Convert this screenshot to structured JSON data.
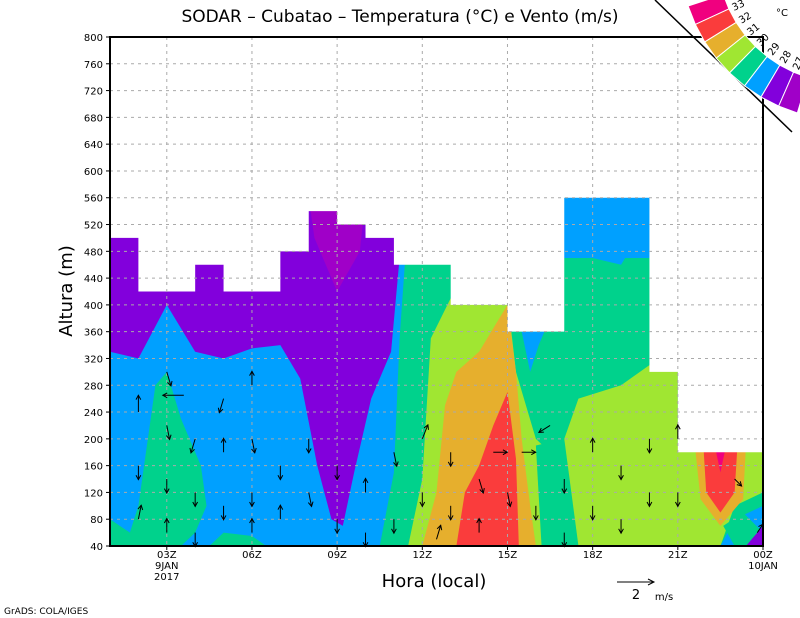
{
  "chart_data": {
    "type": "heatmap",
    "title": "SODAR – Cubatao – Temperatura (°C) e Vento (m/s)",
    "xlabel": "Hora (local)",
    "ylabel": "Altura (m)",
    "xlim": [
      1,
      24
    ],
    "ylim": [
      40,
      800
    ],
    "grid": true,
    "x_ticks": [
      {
        "h": 3,
        "label": "03Z",
        "sub1": "9JAN",
        "sub2": "2017"
      },
      {
        "h": 6,
        "label": "06Z"
      },
      {
        "h": 9,
        "label": "09Z"
      },
      {
        "h": 12,
        "label": "12Z"
      },
      {
        "h": 15,
        "label": "15Z"
      },
      {
        "h": 18,
        "label": "18Z"
      },
      {
        "h": 21,
        "label": "21Z"
      },
      {
        "h": 24,
        "label": "00Z",
        "sub1": "10JAN"
      }
    ],
    "y_ticks": [
      "40",
      "80",
      "120",
      "160",
      "200",
      "240",
      "280",
      "320",
      "360",
      "400",
      "440",
      "480",
      "520",
      "560",
      "600",
      "640",
      "680",
      "720",
      "760",
      "800"
    ],
    "legend": {
      "unit": "°C",
      "placement": "top-right",
      "levels": [
        "33",
        "32",
        "31",
        "30",
        "29",
        "28",
        "27"
      ],
      "colors": [
        "#f0007f",
        "#fa3c3c",
        "#e6af2d",
        "#a0e632",
        "#00d28c",
        "#00a0ff",
        "#8200dc",
        "#a000c8"
      ]
    },
    "data_top": [
      [
        1,
        500
      ],
      [
        2,
        420
      ],
      [
        4,
        460
      ],
      [
        5,
        420
      ],
      [
        7,
        480
      ],
      [
        8,
        540
      ],
      [
        9,
        520
      ],
      [
        10,
        500
      ],
      [
        11,
        460
      ],
      [
        13,
        400
      ],
      [
        15,
        360
      ],
      [
        17,
        560
      ],
      [
        20,
        300
      ],
      [
        21,
        180
      ],
      [
        24,
        180
      ]
    ],
    "regions": [
      {
        "temp_class": "28-29",
        "color": "#00a0ff",
        "points": [
          [
            1,
            40
          ],
          [
            1,
            560
          ],
          [
            24,
            560
          ],
          [
            24,
            40
          ]
        ]
      },
      {
        "temp_class": "27-28",
        "color": "#8200dc",
        "points": [
          [
            1,
            560
          ],
          [
            1,
            330
          ],
          [
            2,
            320
          ],
          [
            3,
            400
          ],
          [
            4,
            330
          ],
          [
            5,
            320
          ],
          [
            6,
            335
          ],
          [
            7,
            340
          ],
          [
            7.7,
            290
          ],
          [
            8.3,
            160
          ],
          [
            8.8,
            80
          ],
          [
            9.2,
            70
          ],
          [
            9.6,
            150
          ],
          [
            10.2,
            260
          ],
          [
            10.9,
            330
          ],
          [
            11.2,
            470
          ],
          [
            11.2,
            560
          ]
        ]
      },
      {
        "temp_class": "<27",
        "color": "#a000c8",
        "points": [
          [
            8,
            560
          ],
          [
            8.2,
            500
          ],
          [
            9,
            420
          ],
          [
            9.8,
            480
          ],
          [
            10,
            560
          ]
        ]
      },
      {
        "temp_class": "29-30",
        "color": "#00d28c",
        "points": [
          [
            1,
            40
          ],
          [
            1,
            80
          ],
          [
            1.7,
            60
          ],
          [
            2,
            100
          ],
          [
            2.6,
            280
          ],
          [
            3,
            300
          ],
          [
            3.5,
            230
          ],
          [
            4.2,
            160
          ],
          [
            4.4,
            100
          ],
          [
            4,
            60
          ],
          [
            3.5,
            40
          ]
        ]
      },
      {
        "temp_class": "29-30",
        "color": "#00d28c",
        "points": [
          [
            4.5,
            40
          ],
          [
            5,
            60
          ],
          [
            6,
            55
          ],
          [
            6.5,
            40
          ]
        ]
      },
      {
        "temp_class": "29-30",
        "color": "#00d28c",
        "points": [
          [
            10.5,
            40
          ],
          [
            11,
            150
          ],
          [
            11.2,
            350
          ],
          [
            11.4,
            470
          ],
          [
            24,
            470
          ],
          [
            24,
            40
          ]
        ]
      },
      {
        "temp_class": "28-29",
        "color": "#00a0ff",
        "points": [
          [
            15.5,
            360
          ],
          [
            15.8,
            300
          ],
          [
            16.1,
            340
          ],
          [
            16.3,
            360
          ]
        ]
      },
      {
        "temp_class": "28-29",
        "color": "#00a0ff",
        "points": [
          [
            17,
            570
          ],
          [
            17,
            520
          ],
          [
            18,
            470
          ],
          [
            19,
            460
          ],
          [
            20,
            530
          ],
          [
            20,
            570
          ]
        ]
      },
      {
        "temp_class": "28-29",
        "color": "#00a0ff",
        "points": [
          [
            22.5,
            40
          ],
          [
            23,
            80
          ],
          [
            24,
            100
          ],
          [
            24,
            40
          ]
        ]
      },
      {
        "temp_class": "30-31",
        "color": "#a0e632",
        "points": [
          [
            11.5,
            40
          ],
          [
            12,
            140
          ],
          [
            12.3,
            350
          ],
          [
            13,
            410
          ],
          [
            15,
            410
          ],
          [
            15.3,
            300
          ],
          [
            16,
            200
          ],
          [
            16.5,
            180
          ],
          [
            17,
            200
          ],
          [
            17.5,
            260
          ],
          [
            19,
            280
          ],
          [
            20,
            310
          ],
          [
            21,
            310
          ],
          [
            21,
            190
          ],
          [
            24,
            190
          ],
          [
            24,
            120
          ],
          [
            23,
            100
          ],
          [
            22.5,
            40
          ]
        ]
      },
      {
        "temp_class": "29-30",
        "color": "#00d28c",
        "points": [
          [
            16.2,
            40
          ],
          [
            16,
            190
          ],
          [
            17,
            200
          ],
          [
            17.5,
            40
          ]
        ]
      },
      {
        "temp_class": "29-30",
        "color": "#00d28c",
        "points": [
          [
            23,
            40
          ],
          [
            22.6,
            70
          ],
          [
            23.3,
            90
          ],
          [
            24,
            60
          ],
          [
            24,
            40
          ]
        ]
      },
      {
        "temp_class": "31-32",
        "color": "#e6af2d",
        "points": [
          [
            12,
            40
          ],
          [
            12.5,
            120
          ],
          [
            12.8,
            250
          ],
          [
            13.2,
            300
          ],
          [
            14,
            330
          ],
          [
            15,
            400
          ],
          [
            15.3,
            300
          ],
          [
            15.5,
            200
          ],
          [
            15.8,
            100
          ],
          [
            16,
            40
          ]
        ]
      },
      {
        "temp_class": "31-32",
        "color": "#e6af2d",
        "points": [
          [
            21.6,
            190
          ],
          [
            21.8,
            110
          ],
          [
            22.5,
            70
          ],
          [
            23.3,
            110
          ],
          [
            23.4,
            190
          ]
        ]
      },
      {
        "temp_class": "32-33",
        "color": "#fa3c3c",
        "points": [
          [
            13.2,
            40
          ],
          [
            13.5,
            120
          ],
          [
            14,
            160
          ],
          [
            14.5,
            220
          ],
          [
            15,
            270
          ],
          [
            15.3,
            170
          ],
          [
            15.4,
            40
          ]
        ]
      },
      {
        "temp_class": "32-33",
        "color": "#fa3c3c",
        "points": [
          [
            21.9,
            190
          ],
          [
            22,
            120
          ],
          [
            22.5,
            90
          ],
          [
            23,
            120
          ],
          [
            23.1,
            190
          ]
        ]
      },
      {
        "temp_class": ">33",
        "color": "#f0007f",
        "points": [
          [
            22.3,
            190
          ],
          [
            22.5,
            150
          ],
          [
            22.7,
            190
          ]
        ]
      },
      {
        "temp_class": "27-28",
        "color": "#8200dc",
        "points": [
          [
            23.4,
            40
          ],
          [
            24,
            40
          ],
          [
            24,
            70
          ]
        ]
      }
    ],
    "wind_vectors": [
      [
        2,
        240,
        0,
        1.2
      ],
      [
        2,
        160,
        0,
        -1
      ],
      [
        2,
        80,
        0.2,
        1
      ],
      [
        3,
        300,
        0.3,
        -1
      ],
      [
        3,
        220,
        0.2,
        -1
      ],
      [
        3,
        140,
        0,
        -1
      ],
      [
        3,
        60,
        0,
        1
      ],
      [
        3.6,
        265,
        -1.5,
        0
      ],
      [
        4,
        200,
        -0.3,
        -1
      ],
      [
        4,
        120,
        0,
        -1
      ],
      [
        4,
        60,
        0,
        -1
      ],
      [
        5,
        260,
        -0.3,
        -1
      ],
      [
        5,
        180,
        0,
        1
      ],
      [
        5,
        100,
        0,
        -1
      ],
      [
        6,
        280,
        0,
        1
      ],
      [
        6,
        200,
        0.2,
        -1
      ],
      [
        6,
        120,
        0,
        -1
      ],
      [
        6,
        60,
        0,
        1
      ],
      [
        7,
        160,
        0,
        -1
      ],
      [
        7,
        80,
        0,
        1
      ],
      [
        8,
        200,
        0,
        -1
      ],
      [
        8,
        120,
        0.2,
        -1
      ],
      [
        9,
        160,
        0,
        -1
      ],
      [
        9,
        80,
        0,
        -1
      ],
      [
        10,
        120,
        0,
        1
      ],
      [
        10,
        60,
        0,
        -1
      ],
      [
        11,
        180,
        0.2,
        -1
      ],
      [
        11,
        80,
        0,
        -1
      ],
      [
        12,
        200,
        0.4,
        1
      ],
      [
        12,
        120,
        0,
        -1
      ],
      [
        12.5,
        50,
        0.3,
        1
      ],
      [
        13,
        180,
        0,
        -1
      ],
      [
        13,
        100,
        0,
        -1
      ],
      [
        14,
        140,
        0.3,
        -1
      ],
      [
        14,
        60,
        0,
        1
      ],
      [
        14.5,
        180,
        1,
        0
      ],
      [
        15,
        120,
        0.2,
        -1
      ],
      [
        15.5,
        180,
        1,
        0
      ],
      [
        16,
        100,
        0,
        -1
      ],
      [
        16.5,
        220,
        -0.8,
        -0.5
      ],
      [
        17,
        140,
        0,
        -1
      ],
      [
        17,
        60,
        0,
        -1
      ],
      [
        18,
        180,
        0,
        1
      ],
      [
        18,
        100,
        0,
        -1
      ],
      [
        19,
        160,
        0,
        -1
      ],
      [
        19,
        80,
        0,
        -1
      ],
      [
        20,
        200,
        0,
        -1
      ],
      [
        20,
        120,
        0,
        -1
      ],
      [
        21,
        200,
        0,
        1
      ],
      [
        21,
        120,
        0,
        -1
      ],
      [
        23,
        140,
        0.5,
        -0.5
      ],
      [
        23.8,
        60,
        0.4,
        0.6
      ]
    ],
    "reference_vector": {
      "value": 2,
      "label": "2",
      "unit": "m/s"
    }
  },
  "footer": "GrADS: COLA/IGES"
}
